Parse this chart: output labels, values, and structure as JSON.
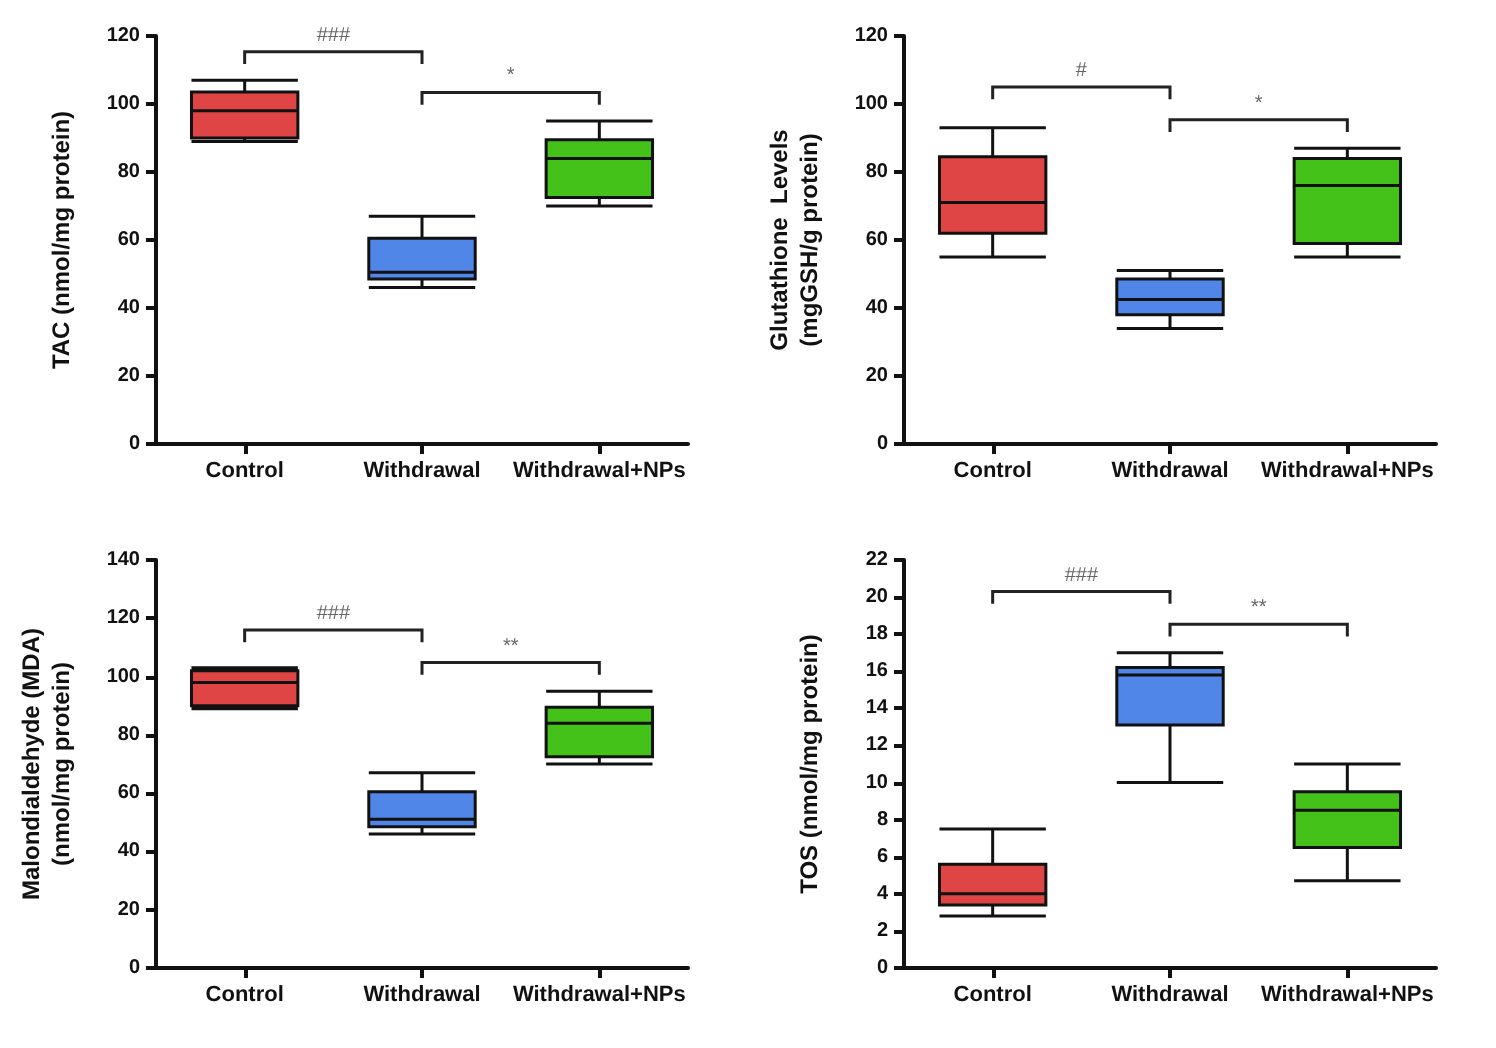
{
  "chart_data": [
    {
      "type": "box",
      "ylabel": "TAC (nmol/mg protein)",
      "categories": [
        "Control",
        "Withdrawal",
        "Withdrawal+NPs"
      ],
      "colors": [
        "#e04545",
        "#4f86e8",
        "#45c21a"
      ],
      "boxes": [
        {
          "low": 89,
          "q1": 90,
          "median": 98,
          "q3": 103.5,
          "high": 107
        },
        {
          "low": 46,
          "q1": 48.5,
          "median": 50.5,
          "q3": 60.5,
          "high": 67
        },
        {
          "low": 70,
          "q1": 72.5,
          "median": 84,
          "q3": 89.5,
          "high": 95
        }
      ],
      "ylim": [
        0,
        120
      ],
      "yticks": [
        0,
        20,
        40,
        60,
        80,
        100,
        120
      ],
      "grid": false,
      "annotations": [
        "###",
        "*"
      ]
    },
    {
      "type": "box",
      "ylabel": "Glutathione  Levels\n(mgGSH/g protein)",
      "categories": [
        "Control",
        "Withdrawal",
        "Withdrawal+NPs"
      ],
      "colors": [
        "#e04545",
        "#4f86e8",
        "#45c21a"
      ],
      "boxes": [
        {
          "low": 55,
          "q1": 62,
          "median": 71,
          "q3": 84.5,
          "high": 93
        },
        {
          "low": 34,
          "q1": 38,
          "median": 42.5,
          "q3": 48.5,
          "high": 51
        },
        {
          "low": 55,
          "q1": 59,
          "median": 76,
          "q3": 84,
          "high": 87
        }
      ],
      "ylim": [
        0,
        120
      ],
      "yticks": [
        0,
        20,
        40,
        60,
        80,
        100,
        120
      ],
      "grid": false,
      "annotations": [
        "#",
        "*"
      ]
    },
    {
      "type": "box",
      "ylabel": "Malondialdehyde (MDA)\n(nmol/mg protein)",
      "categories": [
        "Control",
        "Withdrawal",
        "Withdrawal+NPs"
      ],
      "colors": [
        "#e04545",
        "#4f86e8",
        "#45c21a"
      ],
      "boxes": [
        {
          "low": 89,
          "q1": 90,
          "median": 98,
          "q3": 102,
          "high": 103
        },
        {
          "low": 46,
          "q1": 48.5,
          "median": 51,
          "q3": 60.5,
          "high": 67
        },
        {
          "low": 70,
          "q1": 72.5,
          "median": 84,
          "q3": 89.5,
          "high": 95
        }
      ],
      "ylim": [
        0,
        140
      ],
      "yticks": [
        0,
        20,
        40,
        60,
        80,
        100,
        120,
        140
      ],
      "grid": false,
      "annotations": [
        "###",
        "**"
      ]
    },
    {
      "type": "box",
      "ylabel": "TOS (nmol/mg protein)",
      "categories": [
        "Control",
        "Withdrawal",
        "Withdrawal+NPs"
      ],
      "colors": [
        "#e04545",
        "#4f86e8",
        "#45c21a"
      ],
      "boxes": [
        {
          "low": 2.8,
          "q1": 3.4,
          "median": 4,
          "q3": 5.6,
          "high": 7.5
        },
        {
          "low": 10,
          "q1": 13.1,
          "median": 15.8,
          "q3": 16.2,
          "high": 17
        },
        {
          "low": 4.7,
          "q1": 6.5,
          "median": 8.5,
          "q3": 9.5,
          "high": 11
        }
      ],
      "ylim": [
        0,
        22
      ],
      "yticks": [
        0,
        2,
        4,
        6,
        8,
        10,
        12,
        14,
        16,
        18,
        20,
        22
      ],
      "grid": false,
      "annotations": [
        "###",
        "**"
      ]
    }
  ]
}
